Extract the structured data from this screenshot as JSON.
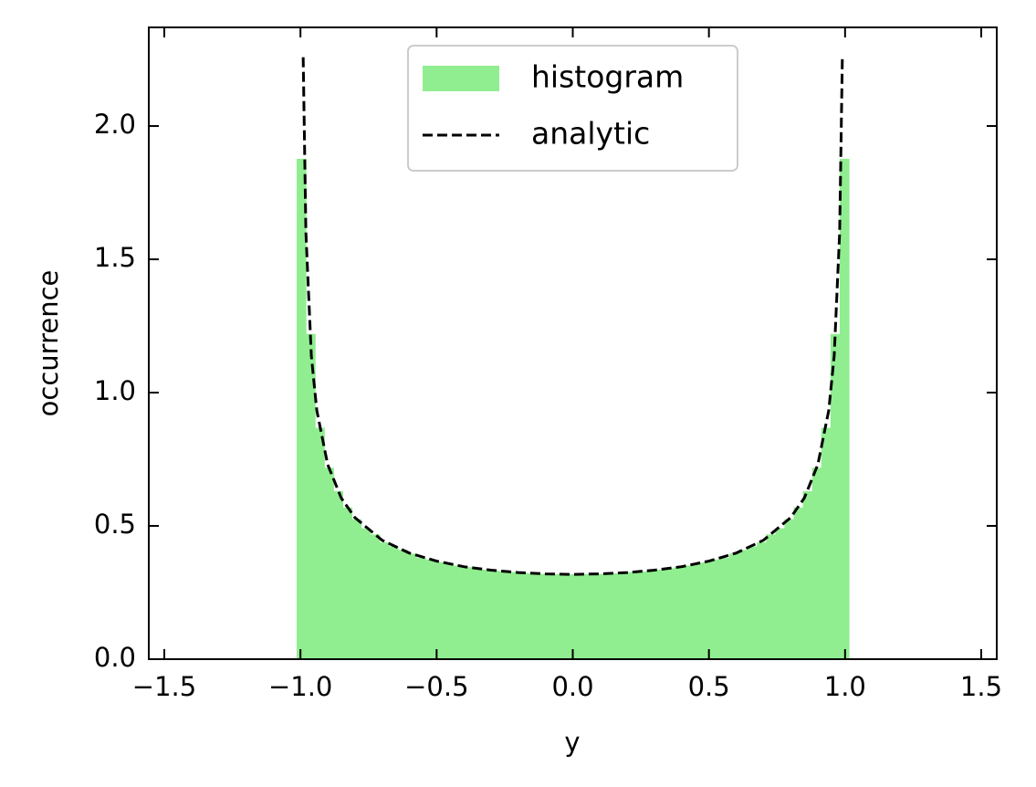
{
  "chart_data": {
    "type": "histogram",
    "xlabel": "y",
    "ylabel": "occurrence",
    "xlim": [
      -1.557,
      1.557
    ],
    "ylim": [
      0,
      2.37
    ],
    "xticks": [
      {
        "value": -1.5,
        "label": "−1.5"
      },
      {
        "value": -1.0,
        "label": "−1.0"
      },
      {
        "value": -0.5,
        "label": "−0.5"
      },
      {
        "value": 0,
        "label": "0.0"
      },
      {
        "value": 0.5,
        "label": "0.5"
      },
      {
        "value": 1.0,
        "label": "1.0"
      },
      {
        "value": 1.5,
        "label": "1.5"
      }
    ],
    "yticks": [
      {
        "value": 0,
        "label": "0.0"
      },
      {
        "value": 0.5,
        "label": "0.5"
      },
      {
        "value": 1.0,
        "label": "1.0"
      },
      {
        "value": 1.5,
        "label": "1.5"
      },
      {
        "value": 2.0,
        "label": "2.0"
      }
    ],
    "legend": "upper center",
    "bins": [
      -1.014,
      -0.9802,
      -0.9464,
      -0.9126,
      -0.8788,
      -0.845,
      -0.8112,
      -0.7774,
      -0.7436,
      -0.7098,
      -0.676,
      -0.6422,
      -0.6084,
      -0.5746,
      -0.5408,
      -0.507,
      -0.4732,
      -0.4394,
      -0.4056,
      -0.3718,
      -0.338,
      -0.3042,
      -0.2704,
      -0.2366,
      -0.2028,
      -0.169,
      -0.1352,
      -0.1014,
      -0.0676,
      -0.0338,
      0,
      0.0338,
      0.0676,
      0.1014,
      0.1352,
      0.169,
      0.2028,
      0.2366,
      0.2704,
      0.3042,
      0.338,
      0.3718,
      0.4056,
      0.4394,
      0.4732,
      0.507,
      0.5408,
      0.5746,
      0.6084,
      0.6422,
      0.676,
      0.7098,
      0.7436,
      0.7774,
      0.8112,
      0.845,
      0.8788,
      0.9126,
      0.9464,
      0.9802,
      1.014
    ],
    "series": [
      {
        "name": "histogram",
        "type": "histogram",
        "color": "#90ee90",
        "values": [
          1.877,
          1.22,
          0.868,
          0.718,
          0.63,
          0.569,
          0.525,
          0.491,
          0.468,
          0.438,
          0.423,
          0.41,
          0.396,
          0.38,
          0.374,
          0.364,
          0.359,
          0.351,
          0.345,
          0.341,
          0.336,
          0.332,
          0.329,
          0.327,
          0.324,
          0.322,
          0.32,
          0.319,
          0.319,
          0.318,
          0.318,
          0.319,
          0.319,
          0.32,
          0.322,
          0.324,
          0.327,
          0.329,
          0.332,
          0.336,
          0.341,
          0.345,
          0.351,
          0.359,
          0.364,
          0.374,
          0.38,
          0.396,
          0.41,
          0.423,
          0.438,
          0.468,
          0.491,
          0.525,
          0.569,
          0.63,
          0.718,
          0.868,
          1.22,
          1.877
        ]
      },
      {
        "name": "analytic",
        "type": "line",
        "color": "#000000",
        "linestyle": "dashed",
        "x": [
          -0.99,
          -0.98,
          -0.96,
          -0.94,
          -0.9,
          -0.85,
          -0.8,
          -0.7,
          -0.6,
          -0.5,
          -0.4,
          -0.3,
          -0.2,
          -0.1,
          0,
          0.1,
          0.2,
          0.3,
          0.4,
          0.5,
          0.6,
          0.7,
          0.8,
          0.85,
          0.9,
          0.94,
          0.96,
          0.98,
          0.99
        ],
        "values": [
          2.258,
          1.6,
          1.137,
          0.933,
          0.73,
          0.604,
          0.531,
          0.446,
          0.398,
          0.368,
          0.347,
          0.334,
          0.325,
          0.32,
          0.318,
          0.32,
          0.325,
          0.334,
          0.347,
          0.368,
          0.398,
          0.446,
          0.531,
          0.604,
          0.73,
          0.933,
          1.137,
          1.6,
          2.258
        ]
      }
    ]
  }
}
